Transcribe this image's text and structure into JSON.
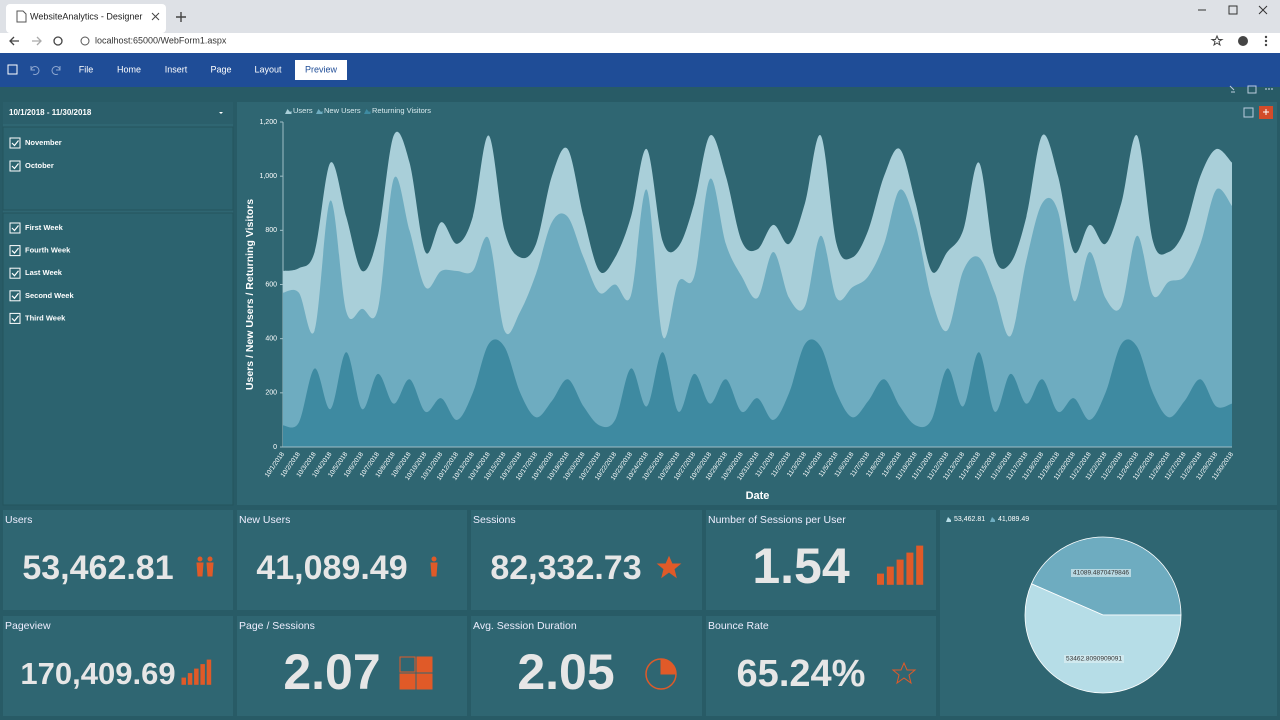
{
  "browser": {
    "tab_title": "WebsiteAnalytics - Designer",
    "url": "localhost:65000/WebForm1.aspx"
  },
  "ribbon": {
    "tabs": [
      "File",
      "Home",
      "Insert",
      "Page",
      "Layout",
      "Preview"
    ]
  },
  "filters": {
    "date_range": "10/1/2018 - 11/30/2018",
    "months": [
      "November",
      "October"
    ],
    "weeks": [
      "First Week",
      "Fourth Week",
      "Last Week",
      "Second Week",
      "Third Week"
    ]
  },
  "kpis": [
    {
      "title": "Users",
      "value": "53,462.81"
    },
    {
      "title": "New Users",
      "value": "41,089.49"
    },
    {
      "title": "Sessions",
      "value": "82,332.73"
    },
    {
      "title": "Number of Sessions per User",
      "value": "1.54"
    },
    {
      "title": "Pageview",
      "value": "170,409.69"
    },
    {
      "title": "Page / Sessions",
      "value": "2.07"
    },
    {
      "title": "Avg. Session Duration",
      "value": "2.05"
    },
    {
      "title": "Bounce Rate",
      "value": "65.24%"
    }
  ],
  "chart_data": [
    {
      "type": "area",
      "y_label": "Users / New Users / Returning Visitors",
      "x_label": "Date",
      "categories": [
        "10/1/2018",
        "10/2/2018",
        "10/3/2018",
        "10/4/2018",
        "10/5/2018",
        "10/6/2018",
        "10/7/2018",
        "10/8/2018",
        "10/9/2018",
        "10/10/2018",
        "10/11/2018",
        "10/12/2018",
        "10/13/2018",
        "10/14/2018",
        "10/15/2018",
        "10/16/2018",
        "10/17/2018",
        "10/18/2018",
        "10/19/2018",
        "10/20/2018",
        "10/21/2018",
        "10/22/2018",
        "10/23/2018",
        "10/24/2018",
        "10/25/2018",
        "10/26/2018",
        "10/27/2018",
        "10/28/2018",
        "10/29/2018",
        "10/30/2018",
        "10/31/2018",
        "11/1/2018",
        "11/2/2018",
        "11/3/2018",
        "11/4/2018",
        "11/5/2018",
        "11/6/2018",
        "11/7/2018",
        "11/8/2018",
        "11/9/2018",
        "11/10/2018",
        "11/11/2018",
        "11/12/2018",
        "11/13/2018",
        "11/14/2018",
        "11/15/2018",
        "11/16/2018",
        "11/17/2018",
        "11/18/2018",
        "11/19/2018",
        "11/20/2018",
        "11/21/2018",
        "11/22/2018",
        "11/23/2018",
        "11/24/2018",
        "11/25/2018",
        "11/26/2018",
        "11/27/2018",
        "11/28/2018",
        "11/29/2018",
        "11/30/2018"
      ],
      "series": [
        {
          "name": "Users",
          "color": "#a9cfd9",
          "values": [
            650,
            660,
            720,
            1050,
            850,
            650,
            780,
            1150,
            1050,
            720,
            830,
            750,
            850,
            1150,
            800,
            700,
            750,
            1000,
            1100,
            850,
            650,
            700,
            850,
            1100,
            760,
            740,
            900,
            1150,
            1000,
            760,
            730,
            820,
            750,
            900,
            1150,
            750,
            700,
            800,
            1000,
            1100,
            900,
            650,
            720,
            800,
            1050,
            700,
            680,
            850,
            1150,
            1000,
            720,
            820,
            750,
            900,
            1150,
            760,
            720,
            800,
            1000,
            1100,
            1050
          ]
        },
        {
          "name": "New Users",
          "color": "#6eacc0",
          "values": [
            570,
            570,
            430,
            910,
            500,
            510,
            510,
            990,
            800,
            590,
            650,
            650,
            650,
            770,
            430,
            500,
            640,
            830,
            850,
            700,
            570,
            600,
            560,
            950,
            410,
            610,
            630,
            990,
            750,
            630,
            550,
            720,
            550,
            520,
            780,
            550,
            590,
            630,
            750,
            950,
            820,
            550,
            430,
            650,
            700,
            570,
            410,
            690,
            900,
            870,
            540,
            720,
            550,
            520,
            780,
            560,
            610,
            630,
            750,
            950,
            890
          ]
        },
        {
          "name": "Returning Visitors",
          "color": "#3e8aa1",
          "values": [
            80,
            90,
            290,
            140,
            350,
            140,
            270,
            160,
            250,
            130,
            180,
            100,
            200,
            380,
            370,
            200,
            110,
            170,
            250,
            150,
            80,
            100,
            290,
            150,
            350,
            130,
            270,
            160,
            250,
            130,
            180,
            100,
            200,
            380,
            370,
            200,
            110,
            170,
            250,
            150,
            80,
            100,
            290,
            150,
            350,
            130,
            270,
            160,
            250,
            130,
            180,
            100,
            200,
            380,
            370,
            200,
            110,
            170,
            250,
            150,
            160
          ]
        }
      ],
      "ylim": [
        0,
        1200
      ],
      "yticks": [
        0,
        200,
        400,
        600,
        800,
        {
          "value": 1000,
          "label": "1,000"
        },
        {
          "value": 1200,
          "label": "1,200"
        }
      ]
    },
    {
      "type": "pie",
      "categories": [
        "53,462.81",
        "41,089.49"
      ],
      "values": [
        53462.8090909091,
        41089.4870479846
      ],
      "colors": [
        "#b6dde7",
        "#6eacc0"
      ]
    }
  ]
}
